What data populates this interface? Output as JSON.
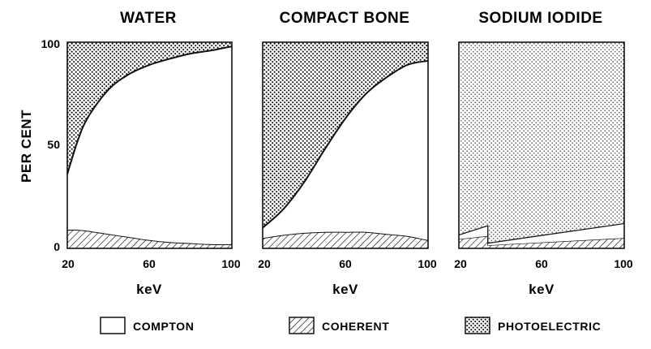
{
  "chart_data": [
    {
      "type": "area",
      "title": "WATER",
      "xlabel": "keV",
      "ylabel": "PER CENT",
      "xlim": [
        20,
        100
      ],
      "ylim": [
        0,
        100
      ],
      "x_ticks": [
        "20",
        "60",
        "100"
      ],
      "y_ticks": [
        "0",
        "50",
        "100"
      ],
      "x": [
        20,
        25,
        30,
        40,
        50,
        60,
        70,
        80,
        90,
        100
      ],
      "series": [
        {
          "name": "COHERENT",
          "values": [
            9,
            9,
            8.5,
            7,
            5.5,
            4,
            3,
            2.5,
            2,
            2
          ]
        },
        {
          "name": "COMPTON",
          "values": [
            27,
            43,
            55,
            70,
            79,
            85,
            89,
            92,
            94,
            96
          ]
        },
        {
          "name": "PHOTOELECTRIC",
          "values": [
            64,
            48,
            36.5,
            23,
            15.5,
            11,
            8,
            5.5,
            4,
            2
          ]
        }
      ]
    },
    {
      "type": "area",
      "title": "COMPACT BONE",
      "xlabel": "keV",
      "ylabel": "",
      "xlim": [
        20,
        100
      ],
      "ylim": [
        0,
        100
      ],
      "x_ticks": [
        "20",
        "60",
        "100"
      ],
      "y_ticks": [],
      "x": [
        20,
        30,
        40,
        50,
        60,
        70,
        80,
        90,
        100
      ],
      "series": [
        {
          "name": "COHERENT",
          "values": [
            5,
            6.5,
            7.5,
            8,
            8,
            8,
            7,
            6,
            4
          ]
        },
        {
          "name": "COMPTON",
          "values": [
            5,
            12.5,
            24.5,
            40,
            55,
            67,
            76,
            83,
            87
          ]
        },
        {
          "name": "PHOTOELECTRIC",
          "values": [
            90,
            81,
            68,
            52,
            37,
            25,
            17,
            11,
            9
          ]
        }
      ]
    },
    {
      "type": "area",
      "title": "SODIUM IODIDE",
      "xlabel": "keV",
      "ylabel": "",
      "xlim": [
        20,
        100
      ],
      "ylim": [
        0,
        100
      ],
      "x_ticks": [
        "20",
        "60",
        "100"
      ],
      "y_ticks": [],
      "x": [
        20,
        34,
        34.01,
        100
      ],
      "series": [
        {
          "name": "COHERENT",
          "values": [
            4.5,
            6,
            1.5,
            5
          ]
        },
        {
          "name": "COMPTON",
          "values": [
            2,
            5,
            1,
            7
          ]
        },
        {
          "name": "PHOTOELECTRIC",
          "values": [
            93.5,
            89,
            97.5,
            88
          ]
        }
      ]
    }
  ],
  "legend": [
    {
      "label": "COMPTON",
      "pattern": "blank"
    },
    {
      "label": "COHERENT",
      "pattern": "hatch"
    },
    {
      "label": "PHOTOELECTRIC",
      "pattern": "dots"
    }
  ],
  "colors": {
    "ink": "#111111",
    "paper": "#ffffff",
    "sodium_dots": "#5a5a5a"
  }
}
